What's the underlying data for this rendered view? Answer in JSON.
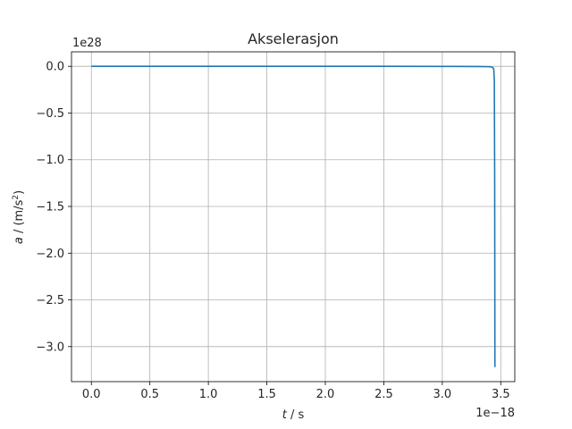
{
  "chart_data": {
    "type": "line",
    "title": "Akselerasjon",
    "xlabel_var": "t",
    "xlabel_unit": " / s",
    "ylabel_var": "a",
    "ylabel_unit": " / (m/s",
    "ylabel_exp": "2",
    "ylabel_close": ")",
    "x_offset_label": "1e−18",
    "y_offset_label": "1e28",
    "x_scale": 1e-18,
    "y_scale": 1e+28,
    "xlim": [
      -0.17,
      3.62
    ],
    "ylim": [
      -3.375,
      0.155
    ],
    "x_ticks": [
      0.0,
      0.5,
      1.0,
      1.5,
      2.0,
      2.5,
      3.0,
      3.5
    ],
    "x_tick_labels": [
      "0.0",
      "0.5",
      "1.0",
      "1.5",
      "2.0",
      "2.5",
      "3.0",
      "3.5"
    ],
    "y_ticks": [
      0.0,
      -0.5,
      -1.0,
      -1.5,
      -2.0,
      -2.5,
      -3.0
    ],
    "y_tick_labels": [
      "0.0",
      "−0.5",
      "−1.0",
      "−1.5",
      "−2.0",
      "−2.5",
      "−3.0"
    ],
    "grid": true,
    "series": [
      {
        "color": "#1f77b4",
        "x": [
          0.0,
          0.5,
          1.0,
          1.5,
          2.0,
          2.5,
          3.0,
          3.3,
          3.4,
          3.43,
          3.44,
          3.445,
          3.448,
          3.45
        ],
        "y": [
          0.0,
          0.0,
          0.0,
          0.0,
          0.0,
          0.0,
          -0.001,
          -0.002,
          -0.004,
          -0.01,
          -0.03,
          -0.15,
          -1.2,
          -3.22
        ]
      }
    ]
  }
}
